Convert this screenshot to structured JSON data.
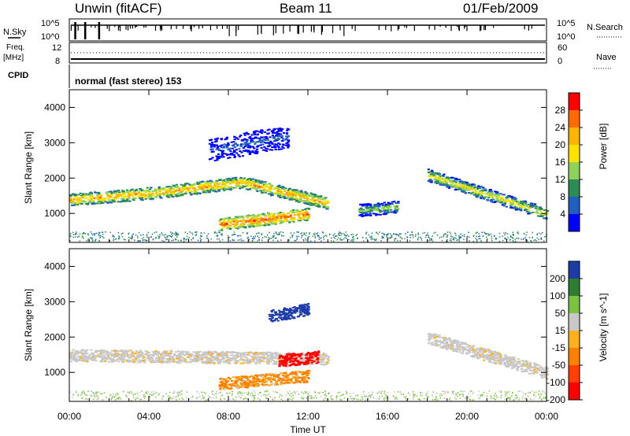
{
  "header": {
    "station": "Unwin (fitACF)",
    "beam": "Beam 11",
    "date": "01/Feb/2009"
  },
  "strips": {
    "nsky_label": "N.Sky",
    "nsky_ticks": [
      "10^5",
      "10^0"
    ],
    "nsearch_label": "N.Search",
    "nsearch_ticks": [
      "10^5",
      "10^0"
    ],
    "freq_label": "Freq.",
    "freq_unit": "[MHz]",
    "freq_ticks": [
      "12",
      "8"
    ],
    "nave_label": "Nave",
    "nave_ticks": [
      "60",
      "0"
    ],
    "cpid_label": "CPID",
    "cpid_value": "normal (fast stereo) 153"
  },
  "chart_data": [
    {
      "type": "heatmap",
      "name": "power-panel",
      "xlabel": "",
      "ylabel": "Slant Range [km]",
      "yticks": [
        "4000",
        "3000",
        "2000",
        "1000"
      ],
      "ylim": [
        180,
        4500
      ],
      "xlim": [
        0,
        24
      ],
      "colorbar_label": "Power [dB]",
      "colorbar_ticks": [
        "28",
        "24",
        "20",
        "16",
        "12",
        "8",
        "4"
      ],
      "colorbar_colors": [
        "#ff0000",
        "#ff6a00",
        "#ffb400",
        "#ffe100",
        "#8fd15a",
        "#2e8b57",
        "#1f5fbf",
        "#0000ff"
      ],
      "features": [
        {
          "label": "east band",
          "t": [
            0,
            8,
            12,
            13
          ],
          "range_km": [
            1400,
            1600,
            1900,
            1300
          ],
          "peak_db": 24
        },
        {
          "label": "lower band",
          "t": [
            7.5,
            12
          ],
          "range_km": [
            700,
            1000
          ],
          "peak_db": 28
        },
        {
          "label": "evening band",
          "t": [
            18,
            24
          ],
          "range_km": [
            2100,
            1000
          ],
          "peak_db": 20
        },
        {
          "label": "midnight patch",
          "t": [
            14.5,
            16.5
          ],
          "range_km": [
            1100,
            1200
          ],
          "peak_db": 16
        },
        {
          "label": "upper scatter",
          "t": [
            7,
            11
          ],
          "range_km": [
            2800,
            3200
          ],
          "peak_db": 8
        }
      ]
    },
    {
      "type": "heatmap",
      "name": "velocity-panel",
      "xlabel": "Time UT",
      "ylabel": "Slant Range [km]",
      "yticks": [
        "4000",
        "3000",
        "2000",
        "1000"
      ],
      "ylim": [
        180,
        4500
      ],
      "xlim": [
        0,
        24
      ],
      "xticks": [
        "00:00",
        "04:00",
        "08:00",
        "12:00",
        "16:00",
        "20:00",
        "00:00"
      ],
      "colorbar_label": "Velocity [m s^-1]",
      "colorbar_ticks": [
        "200",
        "100",
        "50",
        "15",
        "-15",
        "-50",
        "-100",
        "-200"
      ],
      "colorbar_colors": [
        "#1e3ca8",
        "#2e7d32",
        "#7cc242",
        "#c8c8c8",
        "#ffb020",
        "#ff8000",
        "#ff4000",
        "#ff0000"
      ],
      "features": [
        {
          "label": "main band",
          "t": [
            0,
            13
          ],
          "range_km": [
            1500,
            1400
          ],
          "velocity_ms": 0
        },
        {
          "label": "lower band",
          "t": [
            7.5,
            12
          ],
          "range_km": [
            700,
            900
          ],
          "velocity_ms": -40
        },
        {
          "label": "red streak",
          "t": [
            10.5,
            12.5
          ],
          "range_km": [
            1350,
            1450
          ],
          "velocity_ms": -200
        },
        {
          "label": "blue patch",
          "t": [
            10,
            12
          ],
          "range_km": [
            2600,
            2800
          ],
          "velocity_ms": 200
        },
        {
          "label": "evening band",
          "t": [
            18,
            24
          ],
          "range_km": [
            2000,
            1000
          ],
          "velocity_ms": 0
        }
      ]
    }
  ]
}
